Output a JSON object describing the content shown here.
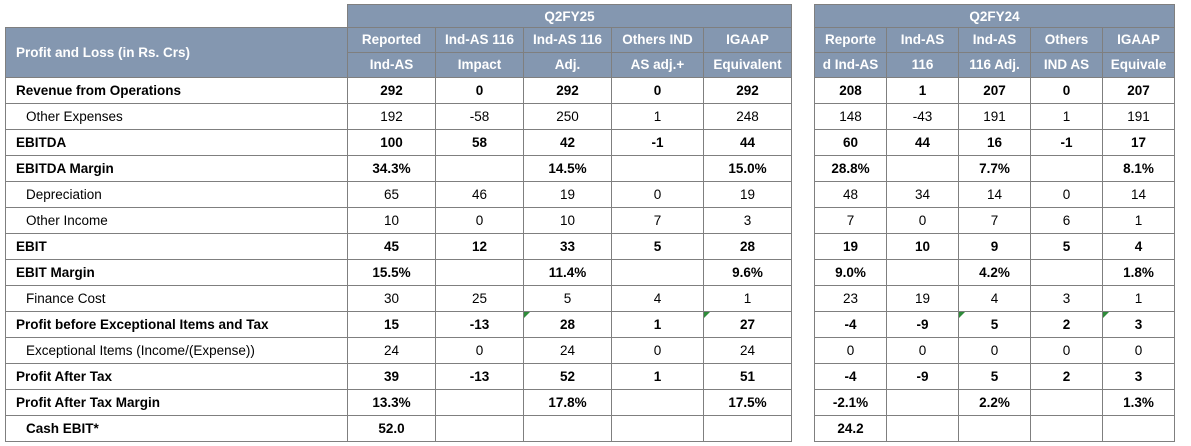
{
  "left": {
    "period": "Q2FY25",
    "row_header": "Profit and Loss (in Rs. Crs)",
    "columns": [
      [
        "Reported",
        "Ind-AS"
      ],
      [
        "Ind-AS 116",
        "Impact"
      ],
      [
        "Ind-AS 116",
        "Adj."
      ],
      [
        "Others IND",
        "AS adj.+"
      ],
      [
        "IGAAP",
        "Equivalent"
      ]
    ],
    "rows": [
      {
        "label": "Revenue from Operations",
        "values": [
          "292",
          "0",
          "292",
          "0",
          "292"
        ]
      },
      {
        "label": "Other Expenses",
        "values": [
          "192",
          "-58",
          "250",
          "1",
          "248"
        ]
      },
      {
        "label": "EBITDA",
        "values": [
          "100",
          "58",
          "42",
          "-1",
          "44"
        ]
      },
      {
        "label": "EBITDA Margin",
        "values": [
          "34.3%",
          "",
          "14.5%",
          "",
          "15.0%"
        ]
      },
      {
        "label": "Depreciation",
        "values": [
          "65",
          "46",
          "19",
          "0",
          "19"
        ]
      },
      {
        "label": "Other Income",
        "values": [
          "10",
          "0",
          "10",
          "7",
          "3"
        ]
      },
      {
        "label": "EBIT",
        "values": [
          "45",
          "12",
          "33",
          "5",
          "28"
        ]
      },
      {
        "label": "EBIT Margin",
        "values": [
          "15.5%",
          "",
          "11.4%",
          "",
          "9.6%"
        ]
      },
      {
        "label": "Finance Cost",
        "values": [
          "30",
          "25",
          "5",
          "4",
          "1"
        ]
      },
      {
        "label": "Profit before Exceptional Items and Tax",
        "values": [
          "15",
          "-13",
          "28",
          "1",
          "27"
        ]
      },
      {
        "label": "Exceptional Items (Income/(Expense))",
        "values": [
          "24",
          "0",
          "24",
          "0",
          "24"
        ]
      },
      {
        "label": "Profit After Tax",
        "values": [
          "39",
          "-13",
          "52",
          "1",
          "51"
        ]
      },
      {
        "label": "Profit After Tax Margin",
        "values": [
          "13.3%",
          "",
          "17.8%",
          "",
          "17.5%"
        ]
      },
      {
        "label": "Cash EBIT*",
        "values": [
          "52.0",
          "",
          "",
          "",
          ""
        ]
      }
    ]
  },
  "right": {
    "period": "Q2FY24",
    "columns": [
      [
        "Reporte",
        "d Ind-AS"
      ],
      [
        "Ind-AS",
        "116"
      ],
      [
        "Ind-AS",
        "116 Adj."
      ],
      [
        "Others",
        "IND AS"
      ],
      [
        "IGAAP",
        "Equivale"
      ]
    ],
    "rows": [
      [
        "208",
        "1",
        "207",
        "0",
        "207"
      ],
      [
        "148",
        "-43",
        "191",
        "1",
        "191"
      ],
      [
        "60",
        "44",
        "16",
        "-1",
        "17"
      ],
      [
        "28.8%",
        "",
        "7.7%",
        "",
        "8.1%"
      ],
      [
        "48",
        "34",
        "14",
        "0",
        "14"
      ],
      [
        "7",
        "0",
        "7",
        "6",
        "1"
      ],
      [
        "19",
        "10",
        "9",
        "5",
        "4"
      ],
      [
        "9.0%",
        "",
        "4.2%",
        "",
        "1.8%"
      ],
      [
        "23",
        "19",
        "4",
        "3",
        "1"
      ],
      [
        "-4",
        "-9",
        "5",
        "2",
        "3"
      ],
      [
        "0",
        "0",
        "0",
        "0",
        "0"
      ],
      [
        "-4",
        "-9",
        "5",
        "2",
        "3"
      ],
      [
        "-2.1%",
        "",
        "2.2%",
        "",
        "1.3%"
      ],
      [
        "24.2",
        "",
        "",
        "",
        ""
      ]
    ]
  }
}
